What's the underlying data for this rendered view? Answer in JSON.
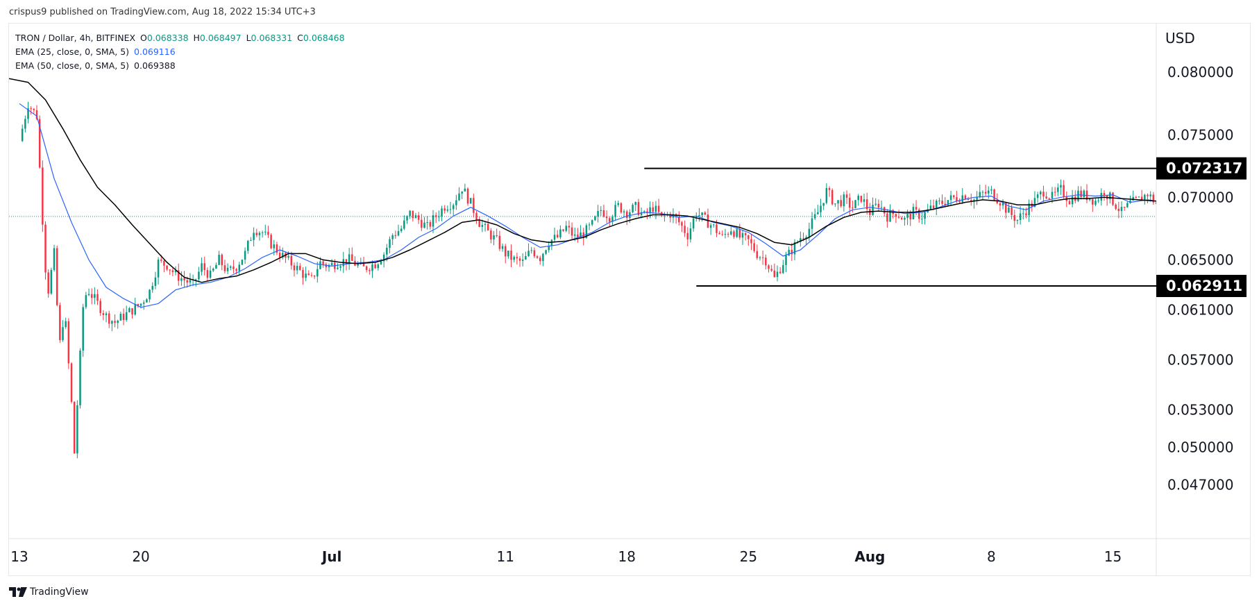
{
  "header": {
    "published_line": "crispus9 published on TradingView.com, Aug 18, 2022 15:34 UTC+3"
  },
  "legend": {
    "symbol": "TRON / Dollar, 4h, BITFINEX",
    "open_label": "O",
    "open": "0.068338",
    "high_label": "H",
    "high": "0.068497",
    "low_label": "L",
    "low": "0.068331",
    "close_label": "C",
    "close": "0.068468",
    "ema25_label": "EMA (25, close, 0, SMA, 5)",
    "ema25_value": "0.069116",
    "ema50_label": "EMA (50, close, 0, SMA, 5)",
    "ema50_value": "0.069388"
  },
  "footer": {
    "brand": "TradingView"
  },
  "colors": {
    "up": "#089981",
    "down": "#f23645",
    "ema25": "#2962ff",
    "ema50": "#000000",
    "price_line": "#089981",
    "level_box": "#000000"
  },
  "chart_data": {
    "type": "candlestick",
    "symbol": "TRON / Dollar",
    "timeframe": "4h",
    "exchange": "BITFINEX",
    "currency": "USD",
    "y_ticks": [
      0.08,
      0.075,
      0.07,
      0.065,
      0.061,
      0.057,
      0.053,
      0.05,
      0.047
    ],
    "y_tick_labels": [
      "0.080000",
      "0.075000",
      "0.070000",
      "0.065000",
      "0.061000",
      "0.057000",
      "0.053000",
      "0.050000",
      "0.047000"
    ],
    "x_ticks": [
      "13",
      "20",
      "Jul",
      "11",
      "18",
      "25",
      "Aug",
      "8",
      "15"
    ],
    "x_tick_days": [
      0,
      7,
      18,
      28,
      35,
      42,
      49,
      56,
      63
    ],
    "x_range_days": [
      -0.6,
      65.5
    ],
    "y_range": [
      0.0427,
      0.0839
    ],
    "current_price": 0.068468,
    "horizontal_levels": [
      {
        "value": 0.072317,
        "label": "0.072317",
        "from_day": 36.0
      },
      {
        "value": 0.062911,
        "label": "0.062911",
        "from_day": 39.0
      }
    ],
    "close_path": [
      [
        0,
        0.0745
      ],
      [
        0.5,
        0.0775
      ],
      [
        1,
        0.0765
      ],
      [
        1.3,
        0.069
      ],
      [
        1.6,
        0.062
      ],
      [
        2,
        0.0655
      ],
      [
        2.3,
        0.058
      ],
      [
        2.6,
        0.061
      ],
      [
        3,
        0.0535
      ],
      [
        3.1,
        0.048
      ],
      [
        3.4,
        0.055
      ],
      [
        3.7,
        0.062
      ],
      [
        4,
        0.0625
      ],
      [
        4.5,
        0.0615
      ],
      [
        5,
        0.0605
      ],
      [
        5.5,
        0.06
      ],
      [
        6,
        0.0605
      ],
      [
        6.5,
        0.061
      ],
      [
        7,
        0.0615
      ],
      [
        7.5,
        0.0625
      ],
      [
        8,
        0.0648
      ],
      [
        8.5,
        0.0646
      ],
      [
        9,
        0.0638
      ],
      [
        10,
        0.063
      ],
      [
        10.5,
        0.0645
      ],
      [
        11,
        0.0637
      ],
      [
        11.5,
        0.065
      ],
      [
        12,
        0.064
      ],
      [
        12.5,
        0.0645
      ],
      [
        13,
        0.0655
      ],
      [
        13.5,
        0.0675
      ],
      [
        14,
        0.0672
      ],
      [
        14.5,
        0.0663
      ],
      [
        15,
        0.0655
      ],
      [
        16,
        0.0643
      ],
      [
        16.8,
        0.0633
      ],
      [
        17.3,
        0.0648
      ],
      [
        17.8,
        0.0645
      ],
      [
        18.3,
        0.0648
      ],
      [
        19,
        0.065
      ],
      [
        19.8,
        0.0643
      ],
      [
        20.5,
        0.0647
      ],
      [
        21,
        0.0655
      ],
      [
        21.5,
        0.067
      ],
      [
        22,
        0.0675
      ],
      [
        22.5,
        0.0687
      ],
      [
        23,
        0.0682
      ],
      [
        23.5,
        0.0676
      ],
      [
        24,
        0.0685
      ],
      [
        24.5,
        0.0693
      ],
      [
        25,
        0.0696
      ],
      [
        25.5,
        0.0708
      ],
      [
        26,
        0.0695
      ],
      [
        26.5,
        0.068
      ],
      [
        27,
        0.0672
      ],
      [
        27.5,
        0.0665
      ],
      [
        28,
        0.0655
      ],
      [
        28.5,
        0.065
      ],
      [
        29,
        0.0648
      ],
      [
        29.5,
        0.0658
      ],
      [
        30,
        0.0652
      ],
      [
        30.5,
        0.0665
      ],
      [
        31,
        0.0668
      ],
      [
        31.5,
        0.0676
      ],
      [
        32,
        0.0668
      ],
      [
        32.5,
        0.0671
      ],
      [
        33,
        0.0678
      ],
      [
        33.5,
        0.069
      ],
      [
        34,
        0.0685
      ],
      [
        34.5,
        0.0693
      ],
      [
        35,
        0.0688
      ],
      [
        35.5,
        0.0692
      ],
      [
        36,
        0.0685
      ],
      [
        36.5,
        0.0692
      ],
      [
        37,
        0.0684
      ],
      [
        37.5,
        0.0687
      ],
      [
        38,
        0.068
      ],
      [
        38.5,
        0.067
      ],
      [
        39,
        0.0688
      ],
      [
        39.5,
        0.0682
      ],
      [
        40,
        0.0676
      ],
      [
        40.5,
        0.0668
      ],
      [
        41,
        0.0675
      ],
      [
        41.5,
        0.0668
      ],
      [
        42,
        0.0665
      ],
      [
        42.5,
        0.0655
      ],
      [
        43,
        0.065
      ],
      [
        43.5,
        0.0635
      ],
      [
        44,
        0.0648
      ],
      [
        44.5,
        0.0658
      ],
      [
        45,
        0.0668
      ],
      [
        45.5,
        0.0675
      ],
      [
        46,
        0.0688
      ],
      [
        46.5,
        0.0705
      ],
      [
        47,
        0.0695
      ],
      [
        47.5,
        0.0698
      ],
      [
        48,
        0.0692
      ],
      [
        48.5,
        0.07
      ],
      [
        49,
        0.0688
      ],
      [
        49.5,
        0.0695
      ],
      [
        50,
        0.0685
      ],
      [
        50.5,
        0.0688
      ],
      [
        51,
        0.0682
      ],
      [
        51.5,
        0.0688
      ],
      [
        52,
        0.0685
      ],
      [
        52.5,
        0.0691
      ],
      [
        53,
        0.0695
      ],
      [
        53.5,
        0.0698
      ],
      [
        54,
        0.07
      ],
      [
        54.5,
        0.0702
      ],
      [
        55,
        0.0698
      ],
      [
        55.5,
        0.0703
      ],
      [
        56,
        0.0704
      ],
      [
        56.5,
        0.0697
      ],
      [
        57,
        0.0688
      ],
      [
        57.5,
        0.0682
      ],
      [
        58,
        0.069
      ],
      [
        58.5,
        0.0697
      ],
      [
        59,
        0.0705
      ],
      [
        59.5,
        0.07
      ],
      [
        60,
        0.0706
      ],
      [
        60.5,
        0.0698
      ],
      [
        61,
        0.0703
      ],
      [
        61.5,
        0.0701
      ],
      [
        62,
        0.0697
      ],
      [
        62.5,
        0.0705
      ],
      [
        63,
        0.0697
      ],
      [
        63.5,
        0.0688
      ],
      [
        64,
        0.0695
      ],
      [
        64.5,
        0.0698
      ],
      [
        65,
        0.0703
      ],
      [
        65.5,
        0.0695
      ],
      [
        66,
        0.0688
      ],
      [
        66.5,
        0.0683
      ],
      [
        67,
        0.0684
      ],
      [
        67.7,
        0.0685
      ]
    ],
    "ema25_path": [
      [
        0,
        0.0775
      ],
      [
        1,
        0.0765
      ],
      [
        2,
        0.0715
      ],
      [
        3,
        0.068
      ],
      [
        4,
        0.065
      ],
      [
        5,
        0.0628
      ],
      [
        6,
        0.0619
      ],
      [
        7,
        0.0612
      ],
      [
        8,
        0.0615
      ],
      [
        9,
        0.0626
      ],
      [
        10,
        0.063
      ],
      [
        11,
        0.0632
      ],
      [
        12,
        0.0636
      ],
      [
        13,
        0.0643
      ],
      [
        14,
        0.0652
      ],
      [
        15,
        0.0658
      ],
      [
        16,
        0.0653
      ],
      [
        17,
        0.0647
      ],
      [
        18,
        0.0645
      ],
      [
        19,
        0.0647
      ],
      [
        20,
        0.0648
      ],
      [
        21,
        0.065
      ],
      [
        22,
        0.0658
      ],
      [
        23,
        0.0668
      ],
      [
        24,
        0.0675
      ],
      [
        25,
        0.0685
      ],
      [
        26,
        0.0692
      ],
      [
        27,
        0.0685
      ],
      [
        28,
        0.0677
      ],
      [
        29,
        0.0668
      ],
      [
        30,
        0.066
      ],
      [
        31,
        0.0662
      ],
      [
        32,
        0.0667
      ],
      [
        33,
        0.0672
      ],
      [
        34,
        0.068
      ],
      [
        35,
        0.0685
      ],
      [
        36,
        0.0688
      ],
      [
        37,
        0.0687
      ],
      [
        38,
        0.0684
      ],
      [
        39,
        0.0685
      ],
      [
        40,
        0.068
      ],
      [
        41,
        0.0677
      ],
      [
        42,
        0.0672
      ],
      [
        43,
        0.0663
      ],
      [
        44,
        0.0653
      ],
      [
        45,
        0.0658
      ],
      [
        46,
        0.067
      ],
      [
        47,
        0.0683
      ],
      [
        48,
        0.069
      ],
      [
        49,
        0.0692
      ],
      [
        50,
        0.069
      ],
      [
        51,
        0.0687
      ],
      [
        52,
        0.0688
      ],
      [
        53,
        0.0692
      ],
      [
        54,
        0.0697
      ],
      [
        55,
        0.07
      ],
      [
        56,
        0.0701
      ],
      [
        57,
        0.0693
      ],
      [
        58,
        0.069
      ],
      [
        59,
        0.0697
      ],
      [
        60,
        0.07
      ],
      [
        61,
        0.0702
      ],
      [
        62,
        0.0701
      ],
      [
        63,
        0.0702
      ],
      [
        64,
        0.0696
      ],
      [
        65,
        0.0698
      ],
      [
        66,
        0.0696
      ],
      [
        67,
        0.0691
      ]
    ],
    "ema50_path": [
      [
        -0.6,
        0.0795
      ],
      [
        0.5,
        0.0792
      ],
      [
        1.5,
        0.0778
      ],
      [
        2.5,
        0.0755
      ],
      [
        3.5,
        0.073
      ],
      [
        4.5,
        0.0708
      ],
      [
        5.5,
        0.0694
      ],
      [
        6.5,
        0.0678
      ],
      [
        7.5,
        0.0663
      ],
      [
        8.5,
        0.0648
      ],
      [
        9.5,
        0.0636
      ],
      [
        10.5,
        0.0632
      ],
      [
        11.5,
        0.0635
      ],
      [
        12.5,
        0.0637
      ],
      [
        13.5,
        0.0642
      ],
      [
        14.5,
        0.0648
      ],
      [
        15.5,
        0.0655
      ],
      [
        16.5,
        0.0655
      ],
      [
        17.5,
        0.065
      ],
      [
        18.5,
        0.0648
      ],
      [
        19.5,
        0.0647
      ],
      [
        20.5,
        0.0648
      ],
      [
        21.5,
        0.0652
      ],
      [
        22.5,
        0.0658
      ],
      [
        23.5,
        0.0665
      ],
      [
        24.5,
        0.0672
      ],
      [
        25.5,
        0.068
      ],
      [
        26.5,
        0.0682
      ],
      [
        27.5,
        0.0678
      ],
      [
        28.5,
        0.0671
      ],
      [
        29.5,
        0.0666
      ],
      [
        30.5,
        0.0664
      ],
      [
        31.5,
        0.0665
      ],
      [
        32.5,
        0.0668
      ],
      [
        33.5,
        0.0674
      ],
      [
        34.5,
        0.0679
      ],
      [
        35.5,
        0.0683
      ],
      [
        36.5,
        0.0686
      ],
      [
        37.5,
        0.0686
      ],
      [
        38.5,
        0.0685
      ],
      [
        39.5,
        0.0682
      ],
      [
        40.5,
        0.0679
      ],
      [
        41.5,
        0.0676
      ],
      [
        42.5,
        0.0671
      ],
      [
        43.5,
        0.0664
      ],
      [
        44.5,
        0.0662
      ],
      [
        45.5,
        0.0668
      ],
      [
        46.5,
        0.0677
      ],
      [
        47.5,
        0.0684
      ],
      [
        48.5,
        0.0688
      ],
      [
        49.5,
        0.0689
      ],
      [
        50.5,
        0.0688
      ],
      [
        51.5,
        0.0688
      ],
      [
        52.5,
        0.069
      ],
      [
        53.5,
        0.0693
      ],
      [
        54.5,
        0.0696
      ],
      [
        55.5,
        0.0698
      ],
      [
        56.5,
        0.0697
      ],
      [
        57.5,
        0.0694
      ],
      [
        58.5,
        0.0694
      ],
      [
        59.5,
        0.0697
      ],
      [
        60.5,
        0.0699
      ],
      [
        61.5,
        0.0699
      ],
      [
        62.5,
        0.07
      ],
      [
        63.5,
        0.0699
      ],
      [
        64.5,
        0.0698
      ],
      [
        65.5,
        0.0697
      ],
      [
        66.5,
        0.0695
      ],
      [
        67.5,
        0.0693
      ]
    ]
  }
}
